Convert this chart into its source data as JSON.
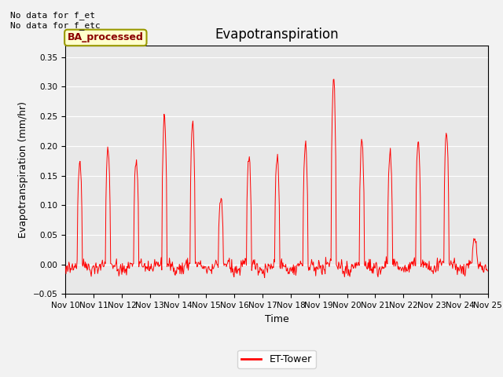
{
  "title": "Evapotranspiration",
  "ylabel": "Evapotranspiration (mm/hr)",
  "xlabel": "Time",
  "ylim": [
    -0.05,
    0.37
  ],
  "annotation_text": "No data for f_et\nNo data for f_etc",
  "legend_label": "ET-Tower",
  "legend_color": "red",
  "box_label": "BA_processed",
  "box_facecolor": "#ffffcc",
  "box_edgecolor": "#999900",
  "plot_bg_color": "#e8e8e8",
  "fig_bg_color": "#f2f2f2",
  "line_color": "red",
  "x_tick_labels": [
    "Nov 10",
    "Nov 11",
    "Nov 12",
    "Nov 13",
    "Nov 14",
    "Nov 15",
    "Nov 16",
    "Nov 17",
    "Nov 18",
    "Nov 19",
    "Nov 20",
    "Nov 21",
    "Nov 22",
    "Nov 23",
    "Nov 24",
    "Nov 25"
  ],
  "title_fontsize": 12,
  "label_fontsize": 9,
  "tick_fontsize": 7.5,
  "peaks": [
    0.175,
    0.195,
    0.175,
    0.25,
    0.24,
    0.11,
    0.18,
    0.18,
    0.2,
    0.315,
    0.21,
    0.185,
    0.21,
    0.22,
    0.04
  ],
  "n_days": 15,
  "pts_per_day": 48,
  "random_seed": 42
}
